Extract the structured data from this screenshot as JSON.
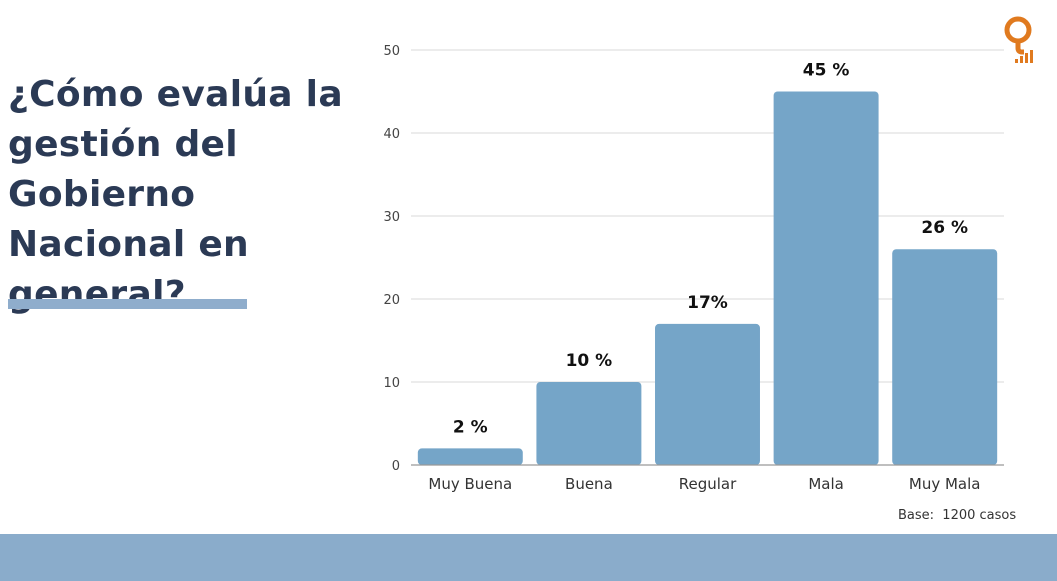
{
  "title": "¿Cómo evalúa la gestión del Gobierno Nacional en general?",
  "base_note": "Base:  1200 casos",
  "colors": {
    "bar": "#75a5c8",
    "title": "#2b3a55",
    "accent_band": "#8aaccb",
    "logo": "#e07a1f"
  },
  "logo_icon": "q-signal-logo-icon",
  "chart_data": {
    "type": "bar",
    "categories": [
      "Muy Buena",
      "Buena",
      "Regular",
      "Mala",
      "Muy Mala"
    ],
    "values": [
      2,
      10,
      17,
      45,
      26
    ],
    "data_labels": [
      "2 %",
      "10 %",
      "17%",
      "45 %",
      "26 %"
    ],
    "title": "",
    "xlabel": "",
    "ylabel": "",
    "ylim": [
      0,
      50
    ],
    "yticks": [
      "0",
      "10",
      "20",
      "30",
      "40",
      "50"
    ],
    "grid": true,
    "legend": "none"
  }
}
